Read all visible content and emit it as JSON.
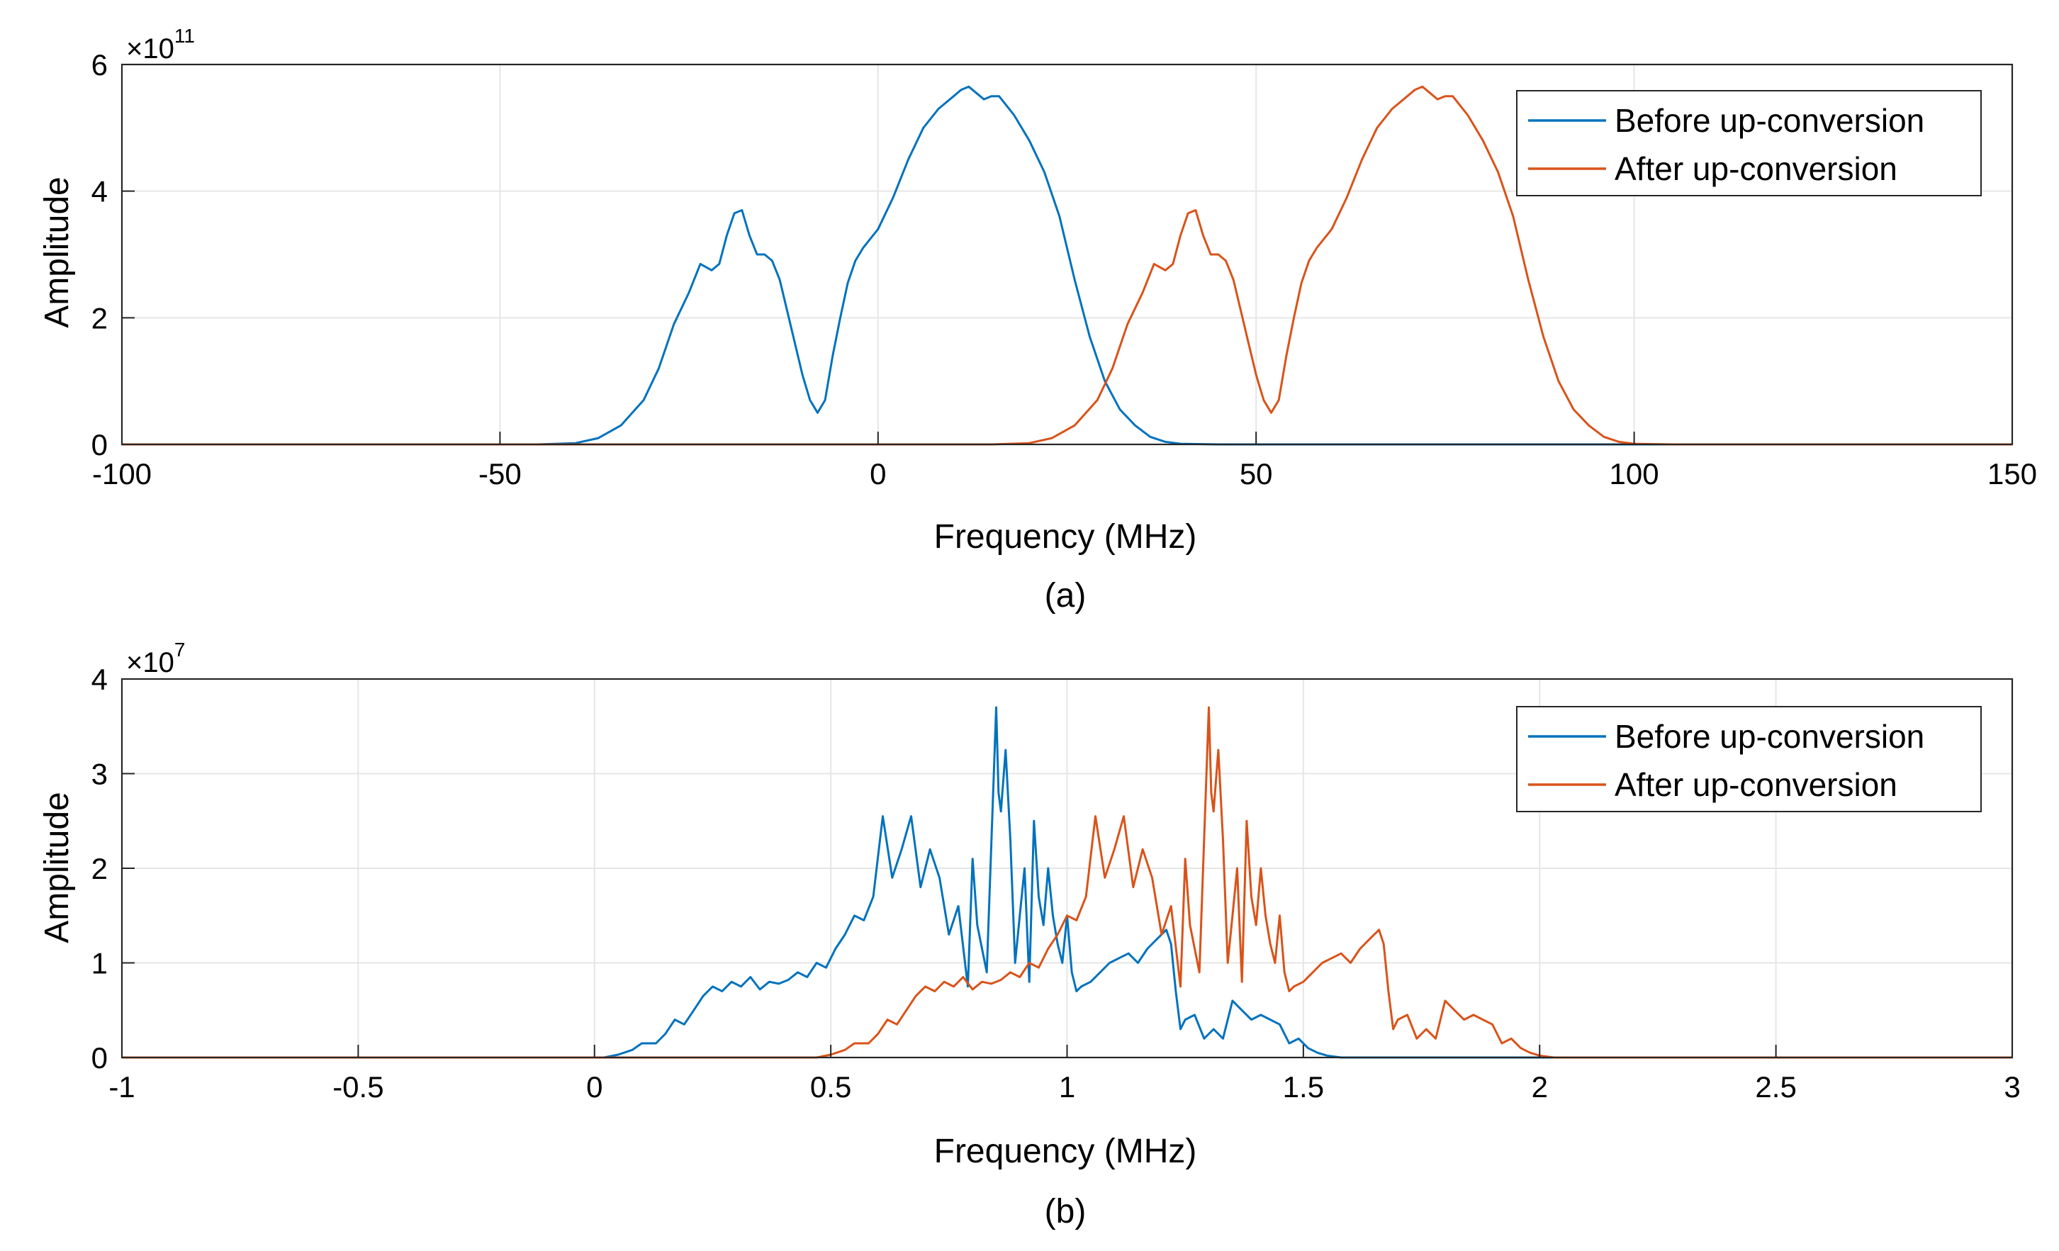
{
  "chart_data": [
    {
      "type": "line",
      "caption": "(a)",
      "xlabel": "Frequency (MHz)",
      "ylabel": "Amplitude",
      "xlim": [
        -100,
        150
      ],
      "ylim": [
        0,
        6
      ],
      "xticks": [
        -100,
        -50,
        0,
        50,
        100,
        150
      ],
      "xtick_labels": [
        "-100",
        "-50",
        "0",
        "50",
        "100",
        "150"
      ],
      "yticks": [
        0,
        2,
        4,
        6
      ],
      "ytick_labels": [
        "0",
        "2",
        "4",
        "6"
      ],
      "y_exponent_base": "×10",
      "y_exponent_power": "11",
      "grid": true,
      "legend_position": "top-right",
      "series": [
        {
          "name": "Before up-conversion",
          "color": "#0072BD",
          "x": [
            -100,
            -45,
            -40,
            -37,
            -34,
            -31,
            -29,
            -27,
            -25,
            -23.5,
            -22,
            -21,
            -20,
            -19,
            -18,
            -17,
            -16,
            -15,
            -14,
            -13,
            -12,
            -11,
            -10,
            -9,
            -8,
            -7,
            -6,
            -5,
            -4,
            -3,
            -2,
            -1,
            0,
            2,
            4,
            6,
            8,
            10,
            11,
            12,
            13,
            14,
            15,
            16,
            17,
            18,
            20,
            22,
            24,
            26,
            28,
            30,
            32,
            34,
            36,
            38,
            40,
            45,
            150
          ],
          "y": [
            0,
            0,
            0.02,
            0.1,
            0.3,
            0.7,
            1.2,
            1.9,
            2.4,
            2.85,
            2.75,
            2.85,
            3.3,
            3.65,
            3.7,
            3.3,
            3.0,
            3.0,
            2.9,
            2.6,
            2.1,
            1.6,
            1.1,
            0.7,
            0.5,
            0.7,
            1.4,
            2.0,
            2.55,
            2.9,
            3.1,
            3.25,
            3.4,
            3.9,
            4.5,
            5.0,
            5.3,
            5.5,
            5.6,
            5.65,
            5.55,
            5.45,
            5.5,
            5.5,
            5.35,
            5.2,
            4.8,
            4.3,
            3.6,
            2.6,
            1.7,
            1.0,
            0.55,
            0.3,
            0.12,
            0.04,
            0.01,
            0,
            0
          ]
        },
        {
          "name": "After up-conversion",
          "color": "#D95319",
          "x": [
            -100,
            15,
            20,
            23,
            26,
            29,
            31,
            33,
            35,
            36.5,
            38,
            39,
            40,
            41,
            42,
            43,
            44,
            45,
            46,
            47,
            48,
            49,
            50,
            51,
            52,
            53,
            54,
            55,
            56,
            57,
            58,
            59,
            60,
            62,
            64,
            66,
            68,
            70,
            71,
            72,
            73,
            74,
            75,
            76,
            77,
            78,
            80,
            82,
            84,
            86,
            88,
            90,
            92,
            94,
            96,
            98,
            100,
            105,
            150
          ],
          "y": [
            0,
            0,
            0.02,
            0.1,
            0.3,
            0.7,
            1.2,
            1.9,
            2.4,
            2.85,
            2.75,
            2.85,
            3.3,
            3.65,
            3.7,
            3.3,
            3.0,
            3.0,
            2.9,
            2.6,
            2.1,
            1.6,
            1.1,
            0.7,
            0.5,
            0.7,
            1.4,
            2.0,
            2.55,
            2.9,
            3.1,
            3.25,
            3.4,
            3.9,
            4.5,
            5.0,
            5.3,
            5.5,
            5.6,
            5.65,
            5.55,
            5.45,
            5.5,
            5.5,
            5.35,
            5.2,
            4.8,
            4.3,
            3.6,
            2.6,
            1.7,
            1.0,
            0.55,
            0.3,
            0.12,
            0.04,
            0.01,
            0,
            0
          ]
        }
      ]
    },
    {
      "type": "line",
      "caption": "(b)",
      "xlabel": "Frequency (MHz)",
      "ylabel": "Amplitude",
      "xlim": [
        -1,
        3
      ],
      "ylim": [
        0,
        4
      ],
      "xticks": [
        -1,
        -0.5,
        0,
        0.5,
        1,
        1.5,
        2,
        2.5,
        3
      ],
      "xtick_labels": [
        "-1",
        "-0.5",
        "0",
        "0.5",
        "1",
        "1.5",
        "2",
        "2.5",
        "3"
      ],
      "yticks": [
        0,
        1,
        2,
        3,
        4
      ],
      "ytick_labels": [
        "0",
        "1",
        "2",
        "3",
        "4"
      ],
      "y_exponent_base": "×10",
      "y_exponent_power": "7",
      "grid": true,
      "legend_position": "top-right",
      "series": [
        {
          "name": "Before up-conversion",
          "color": "#0072BD",
          "x": [
            -1,
            0.02,
            0.05,
            0.08,
            0.1,
            0.13,
            0.15,
            0.17,
            0.19,
            0.21,
            0.23,
            0.25,
            0.27,
            0.29,
            0.31,
            0.33,
            0.35,
            0.37,
            0.39,
            0.41,
            0.43,
            0.45,
            0.47,
            0.49,
            0.51,
            0.53,
            0.55,
            0.57,
            0.59,
            0.61,
            0.63,
            0.65,
            0.67,
            0.69,
            0.71,
            0.73,
            0.75,
            0.77,
            0.79,
            0.8,
            0.81,
            0.83,
            0.85,
            0.855,
            0.86,
            0.87,
            0.88,
            0.89,
            0.9,
            0.91,
            0.92,
            0.93,
            0.94,
            0.95,
            0.96,
            0.97,
            0.98,
            0.99,
            1.0,
            1.01,
            1.02,
            1.03,
            1.05,
            1.07,
            1.09,
            1.11,
            1.13,
            1.15,
            1.17,
            1.19,
            1.21,
            1.22,
            1.23,
            1.24,
            1.25,
            1.27,
            1.29,
            1.31,
            1.33,
            1.35,
            1.37,
            1.39,
            1.41,
            1.43,
            1.45,
            1.47,
            1.49,
            1.51,
            1.53,
            1.55,
            1.58,
            3
          ],
          "y": [
            0,
            0,
            0.03,
            0.08,
            0.15,
            0.15,
            0.25,
            0.4,
            0.35,
            0.5,
            0.65,
            0.75,
            0.7,
            0.8,
            0.75,
            0.85,
            0.72,
            0.8,
            0.78,
            0.82,
            0.9,
            0.85,
            1.0,
            0.95,
            1.15,
            1.3,
            1.5,
            1.45,
            1.7,
            2.55,
            1.9,
            2.2,
            2.55,
            1.8,
            2.2,
            1.9,
            1.3,
            1.6,
            0.75,
            2.1,
            1.4,
            0.9,
            3.7,
            2.8,
            2.6,
            3.25,
            2.3,
            1.0,
            1.5,
            2.0,
            0.8,
            2.5,
            1.7,
            1.4,
            2.0,
            1.5,
            1.2,
            1.0,
            1.5,
            0.9,
            0.7,
            0.75,
            0.8,
            0.9,
            1.0,
            1.05,
            1.1,
            1.0,
            1.15,
            1.25,
            1.35,
            1.2,
            0.7,
            0.3,
            0.4,
            0.45,
            0.2,
            0.3,
            0.2,
            0.6,
            0.5,
            0.4,
            0.45,
            0.4,
            0.35,
            0.15,
            0.2,
            0.1,
            0.05,
            0.02,
            0,
            0
          ]
        },
        {
          "name": "After up-conversion",
          "color": "#D95319",
          "x": [
            -1,
            0.47,
            0.5,
            0.53,
            0.55,
            0.58,
            0.6,
            0.62,
            0.64,
            0.66,
            0.68,
            0.7,
            0.72,
            0.74,
            0.76,
            0.78,
            0.8,
            0.82,
            0.84,
            0.86,
            0.88,
            0.9,
            0.92,
            0.94,
            0.96,
            0.98,
            1.0,
            1.02,
            1.04,
            1.06,
            1.08,
            1.1,
            1.12,
            1.14,
            1.16,
            1.18,
            1.2,
            1.22,
            1.24,
            1.25,
            1.26,
            1.28,
            1.3,
            1.305,
            1.31,
            1.32,
            1.33,
            1.34,
            1.35,
            1.36,
            1.37,
            1.38,
            1.39,
            1.4,
            1.41,
            1.42,
            1.43,
            1.44,
            1.45,
            1.46,
            1.47,
            1.48,
            1.5,
            1.52,
            1.54,
            1.56,
            1.58,
            1.6,
            1.62,
            1.64,
            1.66,
            1.67,
            1.68,
            1.69,
            1.7,
            1.72,
            1.74,
            1.76,
            1.78,
            1.8,
            1.82,
            1.84,
            1.86,
            1.88,
            1.9,
            1.92,
            1.94,
            1.96,
            1.98,
            2.0,
            2.03,
            3
          ],
          "y": [
            0,
            0,
            0.03,
            0.08,
            0.15,
            0.15,
            0.25,
            0.4,
            0.35,
            0.5,
            0.65,
            0.75,
            0.7,
            0.8,
            0.75,
            0.85,
            0.72,
            0.8,
            0.78,
            0.82,
            0.9,
            0.85,
            1.0,
            0.95,
            1.15,
            1.3,
            1.5,
            1.45,
            1.7,
            2.55,
            1.9,
            2.2,
            2.55,
            1.8,
            2.2,
            1.9,
            1.3,
            1.6,
            0.75,
            2.1,
            1.4,
            0.9,
            3.7,
            2.8,
            2.6,
            3.25,
            2.3,
            1.0,
            1.5,
            2.0,
            0.8,
            2.5,
            1.7,
            1.4,
            2.0,
            1.5,
            1.2,
            1.0,
            1.5,
            0.9,
            0.7,
            0.75,
            0.8,
            0.9,
            1.0,
            1.05,
            1.1,
            1.0,
            1.15,
            1.25,
            1.35,
            1.2,
            0.7,
            0.3,
            0.4,
            0.45,
            0.2,
            0.3,
            0.2,
            0.6,
            0.5,
            0.4,
            0.45,
            0.4,
            0.35,
            0.15,
            0.2,
            0.1,
            0.05,
            0.02,
            0,
            0
          ]
        }
      ]
    }
  ]
}
